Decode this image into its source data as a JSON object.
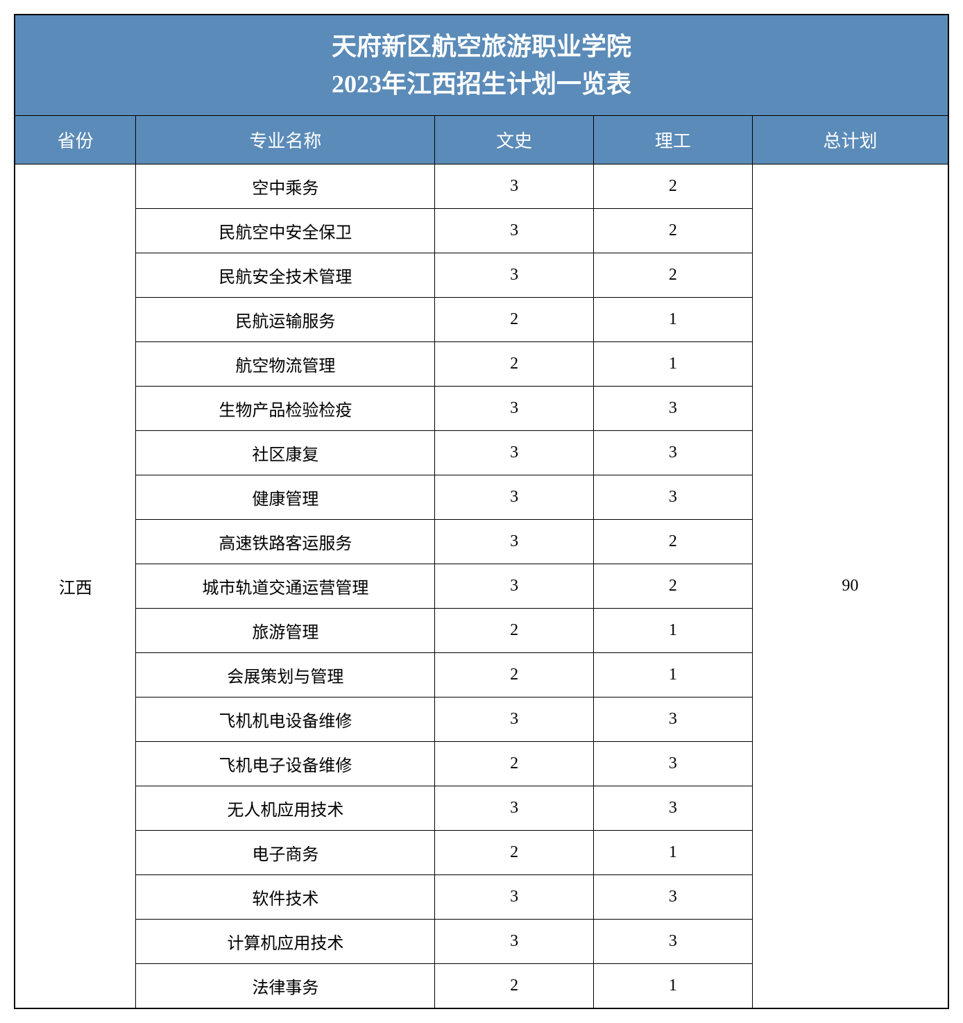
{
  "title_line1": "天府新区航空旅游职业学院",
  "title_line2": "2023年江西招生计划一览表",
  "headers": {
    "province": "省份",
    "major": "专业名称",
    "arts": "文史",
    "science": "理工",
    "total": "总计划"
  },
  "province_name": "江西",
  "total_plan": "90",
  "rows": [
    {
      "major": "空中乘务",
      "arts": "3",
      "science": "2"
    },
    {
      "major": "民航空中安全保卫",
      "arts": "3",
      "science": "2"
    },
    {
      "major": "民航安全技术管理",
      "arts": "3",
      "science": "2"
    },
    {
      "major": "民航运输服务",
      "arts": "2",
      "science": "1"
    },
    {
      "major": "航空物流管理",
      "arts": "2",
      "science": "1"
    },
    {
      "major": "生物产品检验检疫",
      "arts": "3",
      "science": "3"
    },
    {
      "major": "社区康复",
      "arts": "3",
      "science": "3"
    },
    {
      "major": "健康管理",
      "arts": "3",
      "science": "3"
    },
    {
      "major": "高速铁路客运服务",
      "arts": "3",
      "science": "2"
    },
    {
      "major": "城市轨道交通运营管理",
      "arts": "3",
      "science": "2"
    },
    {
      "major": "旅游管理",
      "arts": "2",
      "science": "1"
    },
    {
      "major": "会展策划与管理",
      "arts": "2",
      "science": "1"
    },
    {
      "major": "飞机机电设备维修",
      "arts": "3",
      "science": "3"
    },
    {
      "major": "飞机电子设备维修",
      "arts": "2",
      "science": "3"
    },
    {
      "major": "无人机应用技术",
      "arts": "3",
      "science": "3"
    },
    {
      "major": "电子商务",
      "arts": "2",
      "science": "1"
    },
    {
      "major": "软件技术",
      "arts": "3",
      "science": "3"
    },
    {
      "major": "计算机应用技术",
      "arts": "3",
      "science": "3"
    },
    {
      "major": "法律事务",
      "arts": "2",
      "science": "1"
    }
  ],
  "style": {
    "header_bg": "#5b8bb8",
    "header_text": "#ffffff",
    "cell_bg": "#ffffff",
    "cell_text": "#000000",
    "border": "#000000",
    "title_fontsize": 36,
    "header_fontsize": 26,
    "cell_fontsize": 24
  }
}
